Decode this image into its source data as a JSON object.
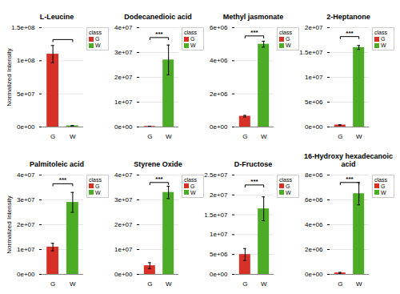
{
  "chart_data": [
    {
      "type": "bar",
      "title": "L-Leucine",
      "categories": [
        "G",
        "W"
      ],
      "values": [
        110000000.0,
        1800000.0
      ],
      "errors": [
        13000000.0,
        150000.0
      ],
      "colors": [
        "#d73027",
        "#4dac26"
      ],
      "ylim": [
        0,
        150000000.0
      ],
      "yticks": [
        {
          "value": 0,
          "label": "0e+00"
        },
        {
          "value": 50000000.0,
          "label": "5e+07"
        },
        {
          "value": 100000000.0,
          "label": "1e+08"
        },
        {
          "value": 150000000.0,
          "label": "1.5e+08"
        }
      ],
      "ylabel": "Normalized Intensity",
      "significance": {
        "y": 132000000.0
      },
      "grid": true,
      "legend": "right",
      "legend_title": "class"
    },
    {
      "type": "bar",
      "title": "Dodecanedioic acid",
      "categories": [
        "G",
        "W"
      ],
      "values": [
        250000.0,
        27000000.0
      ],
      "errors": [
        80000.0,
        6000000.0
      ],
      "colors": [
        "#d73027",
        "#4dac26"
      ],
      "ylim": [
        0,
        40000000.0
      ],
      "yticks": [
        {
          "value": 0,
          "label": "0e+00"
        },
        {
          "value": 10000000.0,
          "label": "1e+07"
        },
        {
          "value": 20000000.0,
          "label": "2e+07"
        },
        {
          "value": 30000000.0,
          "label": "3e+07"
        },
        {
          "value": 40000000.0,
          "label": "4e+07"
        }
      ],
      "significance": {
        "y": 36000000.0,
        "label": "***"
      },
      "grid": true,
      "legend": "right",
      "legend_title": "class"
    },
    {
      "type": "bar",
      "title": "Methyl jasmonate",
      "categories": [
        "G",
        "W"
      ],
      "values": [
        650000.0,
        5000000.0
      ],
      "errors": [
        50000.0,
        180000.0
      ],
      "colors": [
        "#d73027",
        "#4dac26"
      ],
      "ylim": [
        0,
        6000000.0
      ],
      "yticks": [
        {
          "value": 0,
          "label": "0e+00"
        },
        {
          "value": 2000000.0,
          "label": "2e+06"
        },
        {
          "value": 4000000.0,
          "label": "4e+06"
        },
        {
          "value": 6000000.0,
          "label": "6e+06"
        }
      ],
      "significance": {
        "y": 5500000.0,
        "label": "***"
      },
      "grid": true,
      "legend": "right",
      "legend_title": "class"
    },
    {
      "type": "bar",
      "title": "2-Heptanone",
      "categories": [
        "G",
        "W"
      ],
      "values": [
        400000.0,
        16000000.0
      ],
      "errors": [
        30000.0,
        400000.0
      ],
      "colors": [
        "#d73027",
        "#4dac26"
      ],
      "ylim": [
        0,
        20000000.0
      ],
      "yticks": [
        {
          "value": 0,
          "label": "0e+00"
        },
        {
          "value": 5000000.0,
          "label": "5e+06"
        },
        {
          "value": 10000000.0,
          "label": "1e+07"
        },
        {
          "value": 15000000.0,
          "label": "1.5e+07"
        },
        {
          "value": 20000000.0,
          "label": "2e+07"
        }
      ],
      "significance": {
        "y": 18200000.0,
        "label": "***"
      },
      "grid": true,
      "legend": "right",
      "legend_title": "class"
    },
    {
      "type": "bar",
      "title": "Palmitoleic acid",
      "categories": [
        "G",
        "W"
      ],
      "values": [
        11000000.0,
        29000000.0
      ],
      "errors": [
        1500000.0,
        4000000.0
      ],
      "colors": [
        "#d73027",
        "#4dac26"
      ],
      "ylim": [
        0,
        40000000.0
      ],
      "yticks": [
        {
          "value": 0,
          "label": "0e+00"
        },
        {
          "value": 10000000.0,
          "label": "1e+07"
        },
        {
          "value": 20000000.0,
          "label": "2e+07"
        },
        {
          "value": 30000000.0,
          "label": "3e+07"
        },
        {
          "value": 40000000.0,
          "label": "4e+07"
        }
      ],
      "ylabel": "Normalized Intensity",
      "significance": {
        "y": 36500000.0,
        "label": "***"
      },
      "grid": true,
      "legend": "right",
      "legend_title": "class"
    },
    {
      "type": "bar",
      "title": "Styrene Oxide",
      "categories": [
        "G",
        "W"
      ],
      "values": [
        3500000.0,
        33000000.0
      ],
      "errors": [
        1200000.0,
        2500000.0
      ],
      "colors": [
        "#d73027",
        "#4dac26"
      ],
      "ylim": [
        0,
        40000000.0
      ],
      "yticks": [
        {
          "value": 0,
          "label": "0e+00"
        },
        {
          "value": 10000000.0,
          "label": "1e+07"
        },
        {
          "value": 20000000.0,
          "label": "2e+07"
        },
        {
          "value": 30000000.0,
          "label": "3e+07"
        },
        {
          "value": 40000000.0,
          "label": "4e+07"
        }
      ],
      "significance": {
        "y": 37000000.0,
        "label": "***"
      },
      "grid": true,
      "legend": "right",
      "legend_title": "class"
    },
    {
      "type": "bar",
      "title": "D-Fructose",
      "categories": [
        "G",
        "W"
      ],
      "values": [
        5000000.0,
        16500000.0
      ],
      "errors": [
        1500000.0,
        3000000.0
      ],
      "colors": [
        "#d73027",
        "#4dac26"
      ],
      "ylim": [
        0,
        25000000.0
      ],
      "yticks": [
        {
          "value": 0,
          "label": "0e+00"
        },
        {
          "value": 5000000.0,
          "label": "5e+06"
        },
        {
          "value": 10000000.0,
          "label": "1e+07"
        },
        {
          "value": 15000000.0,
          "label": "1.5e+07"
        },
        {
          "value": 20000000.0,
          "label": "2e+07"
        },
        {
          "value": 25000000.0,
          "label": "2.5e+07"
        }
      ],
      "significance": {
        "y": 22500000.0,
        "label": "***"
      },
      "grid": true,
      "legend": "right",
      "legend_title": "class"
    },
    {
      "type": "bar",
      "title": "16-Hydroxy hexadecanoic acid",
      "categories": [
        "G",
        "W"
      ],
      "values": [
        120000.0,
        6500000.0
      ],
      "errors": [
        40000.0,
        900000.0
      ],
      "colors": [
        "#d73027",
        "#4dac26"
      ],
      "ylim": [
        0,
        8000000.0
      ],
      "yticks": [
        {
          "value": 0,
          "label": "0e+00"
        },
        {
          "value": 2000000.0,
          "label": "2e+06"
        },
        {
          "value": 4000000.0,
          "label": "4e+06"
        },
        {
          "value": 6000000.0,
          "label": "6e+06"
        },
        {
          "value": 8000000.0,
          "label": "8e+06"
        }
      ],
      "significance": {
        "y": 7400000.0,
        "label": "***"
      },
      "grid": true,
      "legend": "right",
      "legend_title": "class"
    }
  ]
}
